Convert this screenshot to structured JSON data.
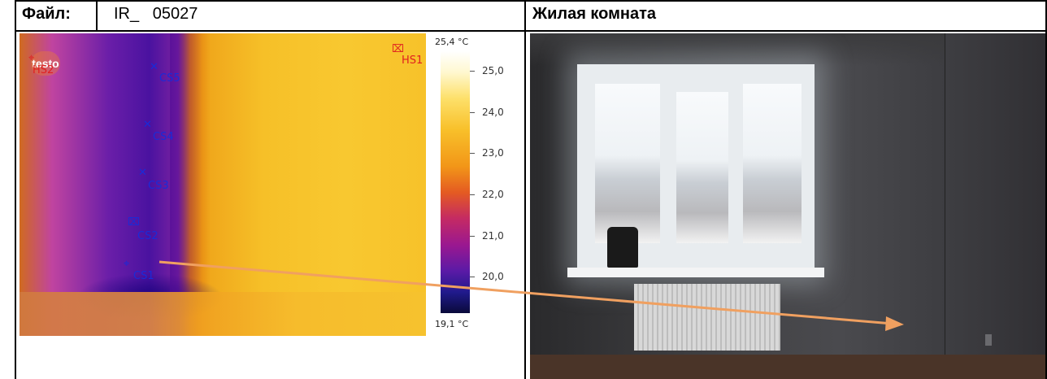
{
  "header": {
    "file_label": "Файл:",
    "file_name": "IR_   05027",
    "room_title": "Жилая комната"
  },
  "thermal_image": {
    "logo_text": "testo",
    "markers": [
      {
        "label": "CS5",
        "type": "cold"
      },
      {
        "label": "CS4",
        "type": "cold"
      },
      {
        "label": "CS3",
        "type": "cold"
      },
      {
        "label": "CS2",
        "type": "cold"
      },
      {
        "label": "CS1",
        "type": "cold"
      },
      {
        "label": "HS1",
        "type": "hot"
      },
      {
        "label": "HS2",
        "type": "hot"
      }
    ],
    "scale": {
      "max_label": "25,4 °C",
      "min_label": "19,1 °C",
      "ticks": [
        "25,0",
        "24,0",
        "23,0",
        "22,0",
        "21,0",
        "20,0"
      ]
    }
  },
  "annotation": {
    "arrow_color": "#f0a060"
  }
}
